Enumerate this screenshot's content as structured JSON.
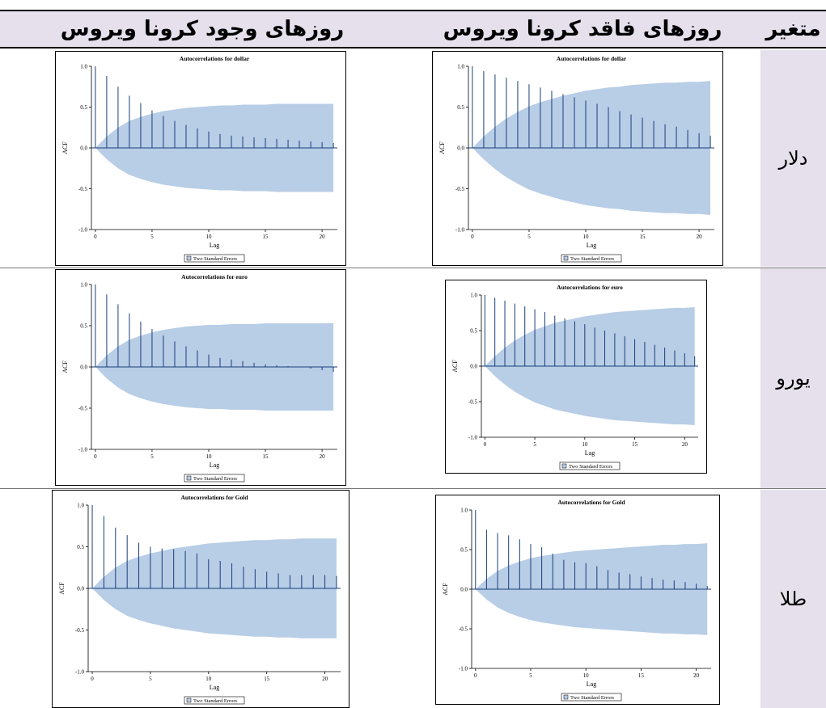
{
  "table": {
    "headers": {
      "variable": "متغیر",
      "without_corona": "روزهای فاقد کرونا ویروس",
      "with_corona": "روزهای وجود کرونا ویروس"
    },
    "rows": [
      {
        "label": "دلار"
      },
      {
        "label": "یورو"
      },
      {
        "label": "طلا"
      }
    ]
  },
  "colors": {
    "band": "#b8cde6",
    "bar": "#1a3e7a",
    "header_bg": "#e5e0ec"
  },
  "chart_data": [
    {
      "type": "bar",
      "panel": "dollar-without-corona",
      "title": "Autocorrelations for dollar",
      "xlabel": "Lag",
      "ylabel": "ACF",
      "legend": "Two Standard Errors",
      "ylim": [
        -1.0,
        1.0
      ],
      "xlim": [
        0,
        21
      ],
      "xticks": [
        0,
        5,
        10,
        15,
        20
      ],
      "yticks": [
        -1.0,
        -0.5,
        0.0,
        0.5,
        1.0
      ],
      "x": [
        0,
        1,
        2,
        3,
        4,
        5,
        6,
        7,
        8,
        9,
        10,
        11,
        12,
        13,
        14,
        15,
        16,
        17,
        18,
        19,
        20,
        21
      ],
      "values": [
        1.0,
        0.94,
        0.9,
        0.86,
        0.82,
        0.78,
        0.74,
        0.7,
        0.66,
        0.62,
        0.58,
        0.54,
        0.5,
        0.45,
        0.41,
        0.37,
        0.33,
        0.29,
        0.26,
        0.22,
        0.18,
        0.15
      ],
      "band": [
        0.0,
        0.14,
        0.26,
        0.36,
        0.44,
        0.51,
        0.56,
        0.6,
        0.64,
        0.67,
        0.7,
        0.72,
        0.74,
        0.75,
        0.77,
        0.78,
        0.79,
        0.8,
        0.8,
        0.81,
        0.81,
        0.82
      ]
    },
    {
      "type": "bar",
      "panel": "dollar-with-corona",
      "title": "Autocorrelations for dollar",
      "xlabel": "Lag",
      "ylabel": "ACF",
      "legend": "Two Standard Errors",
      "ylim": [
        -1.0,
        1.0
      ],
      "xlim": [
        0,
        21
      ],
      "xticks": [
        0,
        5,
        10,
        15,
        20
      ],
      "yticks": [
        -1.0,
        -0.5,
        0.0,
        0.5,
        1.0
      ],
      "x": [
        0,
        1,
        2,
        3,
        4,
        5,
        6,
        7,
        8,
        9,
        10,
        11,
        12,
        13,
        14,
        15,
        16,
        17,
        18,
        19,
        20,
        21
      ],
      "values": [
        1.0,
        0.88,
        0.75,
        0.64,
        0.55,
        0.46,
        0.39,
        0.33,
        0.28,
        0.24,
        0.2,
        0.17,
        0.15,
        0.14,
        0.13,
        0.12,
        0.11,
        0.1,
        0.09,
        0.08,
        0.07,
        0.06
      ],
      "band": [
        0.0,
        0.14,
        0.25,
        0.33,
        0.38,
        0.42,
        0.45,
        0.47,
        0.49,
        0.5,
        0.51,
        0.52,
        0.52,
        0.53,
        0.53,
        0.53,
        0.54,
        0.54,
        0.54,
        0.54,
        0.54,
        0.54
      ]
    },
    {
      "type": "bar",
      "panel": "euro-without-corona",
      "title": "Autocorrelations for euro",
      "xlabel": "Lag",
      "ylabel": "ACF",
      "legend": "Two Standard Errors",
      "ylim": [
        -1.0,
        1.0
      ],
      "xlim": [
        0,
        21
      ],
      "xticks": [
        0,
        5,
        10,
        15,
        20
      ],
      "yticks": [
        -1.0,
        -0.5,
        0.0,
        0.5,
        1.0
      ],
      "x": [
        0,
        1,
        2,
        3,
        4,
        5,
        6,
        7,
        8,
        9,
        10,
        11,
        12,
        13,
        14,
        15,
        16,
        17,
        18,
        19,
        20,
        21
      ],
      "values": [
        1.0,
        0.96,
        0.92,
        0.88,
        0.84,
        0.8,
        0.76,
        0.71,
        0.67,
        0.63,
        0.59,
        0.54,
        0.5,
        0.46,
        0.42,
        0.38,
        0.34,
        0.3,
        0.26,
        0.22,
        0.18,
        0.14
      ],
      "band": [
        0.0,
        0.14,
        0.26,
        0.36,
        0.44,
        0.51,
        0.56,
        0.61,
        0.64,
        0.67,
        0.7,
        0.72,
        0.74,
        0.76,
        0.77,
        0.78,
        0.79,
        0.8,
        0.81,
        0.82,
        0.82,
        0.83
      ]
    },
    {
      "type": "bar",
      "panel": "euro-with-corona",
      "title": "Autocorrelations for euro",
      "xlabel": "Lag",
      "ylabel": "ACF",
      "legend": "Two Standard Errors",
      "ylim": [
        -1.0,
        1.0
      ],
      "xlim": [
        0,
        21
      ],
      "xticks": [
        0,
        5,
        10,
        15,
        20
      ],
      "yticks": [
        -1.0,
        -0.5,
        0.0,
        0.5,
        1.0
      ],
      "x": [
        0,
        1,
        2,
        3,
        4,
        5,
        6,
        7,
        8,
        9,
        10,
        11,
        12,
        13,
        14,
        15,
        16,
        17,
        18,
        19,
        20,
        21
      ],
      "values": [
        1.0,
        0.88,
        0.76,
        0.65,
        0.55,
        0.46,
        0.38,
        0.31,
        0.25,
        0.2,
        0.15,
        0.11,
        0.09,
        0.07,
        0.05,
        0.03,
        0.02,
        0.01,
        0.0,
        -0.02,
        -0.04,
        -0.06
      ],
      "band": [
        0.0,
        0.14,
        0.25,
        0.33,
        0.38,
        0.42,
        0.45,
        0.47,
        0.49,
        0.5,
        0.51,
        0.51,
        0.52,
        0.52,
        0.52,
        0.53,
        0.53,
        0.53,
        0.53,
        0.53,
        0.53,
        0.53
      ]
    },
    {
      "type": "bar",
      "panel": "gold-without-corona",
      "title": "Autocorrelations for Gold",
      "xlabel": "Lag",
      "ylabel": "ACF",
      "legend": "Two Standard Errors",
      "ylim": [
        -1.0,
        1.0
      ],
      "xlim": [
        0,
        21
      ],
      "xticks": [
        0,
        5,
        10,
        15,
        20
      ],
      "yticks": [
        -1.0,
        -0.5,
        0.0,
        0.5,
        1.0
      ],
      "x": [
        0,
        1,
        2,
        3,
        4,
        5,
        6,
        7,
        8,
        9,
        10,
        11,
        12,
        13,
        14,
        15,
        16,
        17,
        18,
        19,
        20,
        21
      ],
      "values": [
        1.0,
        0.75,
        0.71,
        0.68,
        0.63,
        0.57,
        0.53,
        0.45,
        0.37,
        0.34,
        0.33,
        0.29,
        0.24,
        0.21,
        0.19,
        0.16,
        0.14,
        0.12,
        0.11,
        0.09,
        0.07,
        0.04
      ],
      "band": [
        0.0,
        0.13,
        0.23,
        0.3,
        0.35,
        0.39,
        0.42,
        0.44,
        0.46,
        0.48,
        0.49,
        0.5,
        0.51,
        0.52,
        0.53,
        0.54,
        0.55,
        0.56,
        0.56,
        0.57,
        0.57,
        0.58
      ]
    },
    {
      "type": "bar",
      "panel": "gold-with-corona",
      "title": "Autocorrelations for Gold",
      "xlabel": "Lag",
      "ylabel": "ACF",
      "legend": "Two Standard Errors",
      "ylim": [
        -1.0,
        1.0
      ],
      "xlim": [
        0,
        21
      ],
      "xticks": [
        0,
        5,
        10,
        15,
        20
      ],
      "yticks": [
        -1.0,
        -0.5,
        0.0,
        0.5,
        1.0
      ],
      "x": [
        0,
        1,
        2,
        3,
        4,
        5,
        6,
        7,
        8,
        9,
        10,
        11,
        12,
        13,
        14,
        15,
        16,
        17,
        18,
        19,
        20,
        21
      ],
      "values": [
        1.0,
        0.87,
        0.73,
        0.64,
        0.55,
        0.5,
        0.48,
        0.47,
        0.45,
        0.42,
        0.35,
        0.33,
        0.3,
        0.26,
        0.23,
        0.2,
        0.18,
        0.16,
        0.16,
        0.16,
        0.16,
        0.15
      ],
      "band": [
        0.0,
        0.14,
        0.25,
        0.33,
        0.38,
        0.42,
        0.45,
        0.48,
        0.5,
        0.52,
        0.54,
        0.55,
        0.56,
        0.57,
        0.58,
        0.58,
        0.59,
        0.59,
        0.6,
        0.6,
        0.6,
        0.6
      ]
    }
  ]
}
